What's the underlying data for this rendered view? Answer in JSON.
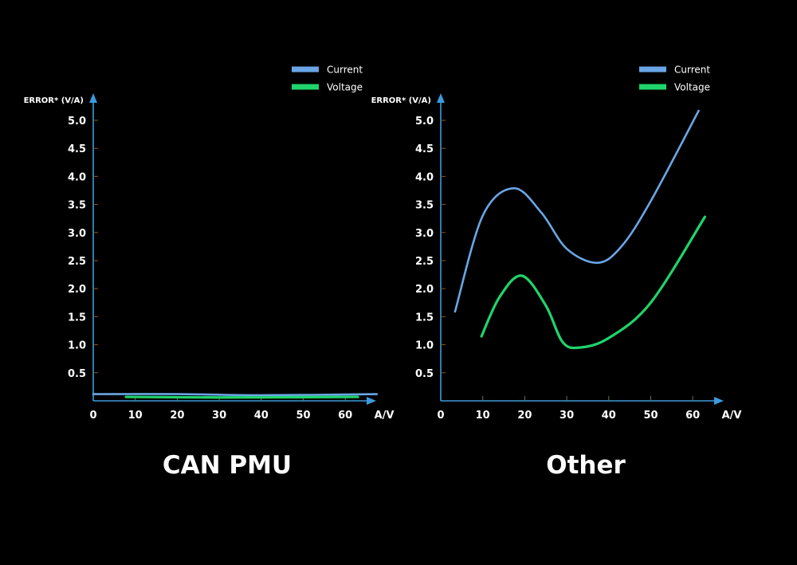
{
  "colors": {
    "current": "#6aa6e6",
    "voltage": "#1fd46b",
    "axis": "#3b9bdc",
    "tick": "#8a5a2a",
    "text": "#ffffff"
  },
  "chart_data": [
    {
      "type": "line",
      "title": "CAN PMU",
      "ylabel": "ERROR* (V/A)",
      "xlabel": "A/V",
      "xlim": [
        0,
        67
      ],
      "ylim": [
        0,
        5.3
      ],
      "x_ticks": [
        "0",
        "10",
        "20",
        "30",
        "40",
        "50",
        "60"
      ],
      "y_ticks": [
        "0.5",
        "1.0",
        "1.5",
        "2.0",
        "2.5",
        "3.0",
        "3.5",
        "4.0",
        "4.5",
        "5.0"
      ],
      "grid": false,
      "legend": "top-right",
      "series": [
        {
          "name": "Current",
          "color": "#6aa6e6",
          "points": [
            [
              0,
              0.12
            ],
            [
              20,
              0.12
            ],
            [
              40,
              0.1
            ],
            [
              67.5,
              0.12
            ]
          ]
        },
        {
          "name": "Voltage",
          "color": "#1fd46b",
          "points": [
            [
              7.8,
              0.07
            ],
            [
              30,
              0.06
            ],
            [
              63,
              0.07
            ]
          ]
        }
      ]
    },
    {
      "type": "line",
      "title": "Other",
      "ylabel": "ERROR* (V/A)",
      "xlabel": "A/V",
      "xlim": [
        0,
        67
      ],
      "ylim": [
        0,
        5.3
      ],
      "x_ticks": [
        "0",
        "10",
        "20",
        "30",
        "40",
        "50",
        "60"
      ],
      "y_ticks": [
        "0.5",
        "1.0",
        "1.5",
        "2.0",
        "2.5",
        "3.0",
        "3.5",
        "4.0",
        "4.5",
        "5.0"
      ],
      "grid": false,
      "legend": "top-right",
      "series": [
        {
          "name": "Current",
          "color": "#6aa6e6",
          "points": [
            [
              3.4,
              1.59
            ],
            [
              10,
              3.3
            ],
            [
              17.4,
              3.79
            ],
            [
              24,
              3.35
            ],
            [
              30,
              2.71
            ],
            [
              37.3,
              2.46
            ],
            [
              43,
              2.75
            ],
            [
              50,
              3.56
            ],
            [
              61.4,
              5.17
            ]
          ]
        },
        {
          "name": "Voltage",
          "color": "#1fd46b",
          "points": [
            [
              9.7,
              1.15
            ],
            [
              14,
              1.85
            ],
            [
              19.3,
              2.23
            ],
            [
              25,
              1.7
            ],
            [
              29,
              1.05
            ],
            [
              33.1,
              0.95
            ],
            [
              40,
              1.12
            ],
            [
              50,
              1.75
            ],
            [
              62.9,
              3.28
            ]
          ]
        }
      ]
    }
  ]
}
